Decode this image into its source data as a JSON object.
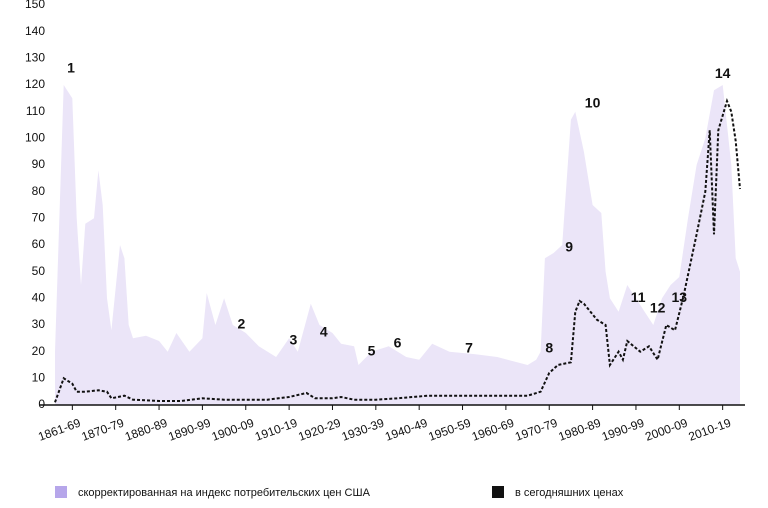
{
  "chart_data": {
    "type": "area-line",
    "series": [
      {
        "name": "скорректированная на индекс потребительских цен США",
        "color": "#ebe5f8",
        "legend_color": "#b6a6ea",
        "style": "area",
        "x": [
          1861,
          1863,
          1865,
          1866,
          1867,
          1868,
          1870,
          1871,
          1872,
          1873,
          1874,
          1876,
          1877,
          1878,
          1879,
          1882,
          1885,
          1887,
          1889,
          1892,
          1895,
          1896,
          1898,
          1900,
          1902,
          1905,
          1908,
          1912,
          1915,
          1917,
          1920,
          1922,
          1925,
          1927,
          1930,
          1931,
          1934,
          1938,
          1942,
          1945,
          1948,
          1952,
          1958,
          1963,
          1970,
          1972,
          1973,
          1974,
          1976,
          1978,
          1980,
          1981,
          1983,
          1985,
          1987,
          1988,
          1989,
          1991,
          1993,
          1995,
          1997,
          1999,
          2001,
          2003,
          2005,
          2007,
          2009,
          2011,
          2013,
          2015,
          2017,
          2018,
          2019
        ],
        "values": [
          20,
          120,
          115,
          70,
          45,
          68,
          70,
          88,
          75,
          40,
          28,
          60,
          55,
          30,
          25,
          26,
          24,
          20,
          27,
          20,
          25,
          42,
          30,
          40,
          30,
          27,
          22,
          18,
          25,
          20,
          38,
          30,
          27,
          23,
          22,
          15,
          20,
          22,
          18,
          17,
          23,
          20,
          19,
          18,
          15,
          17,
          20,
          55,
          57,
          60,
          107,
          110,
          95,
          75,
          72,
          50,
          40,
          35,
          45,
          40,
          35,
          30,
          40,
          45,
          48,
          70,
          90,
          100,
          118,
          120,
          90,
          55,
          50
        ]
      },
      {
        "name": "в сегодняшних ценах",
        "color": "#111111",
        "style": "dashed-line",
        "x": [
          1861,
          1863,
          1865,
          1866,
          1868,
          1871,
          1873,
          1874,
          1877,
          1879,
          1885,
          1890,
          1895,
          1900,
          1910,
          1915,
          1919,
          1921,
          1925,
          1927,
          1930,
          1935,
          1940,
          1947,
          1960,
          1970,
          1973,
          1975,
          1977,
          1980,
          1981,
          1982,
          1983,
          1986,
          1988,
          1989,
          1991,
          1992,
          1993,
          1996,
          1998,
          2000,
          2002,
          2004,
          2006,
          2009,
          2011,
          2012,
          2013,
          2014,
          2016,
          2017,
          2018,
          2019
        ],
        "values": [
          1,
          10,
          8,
          5,
          5,
          5.5,
          5,
          2.5,
          3.5,
          2,
          1.5,
          1.5,
          2.5,
          2,
          2,
          3,
          4.5,
          2.5,
          2.5,
          3,
          2,
          2,
          2.5,
          3.5,
          3.5,
          3.5,
          5,
          12,
          15,
          16,
          35,
          39,
          38,
          32,
          30,
          15,
          20,
          17,
          24,
          20,
          22,
          17,
          30,
          28,
          41,
          64,
          80,
          103,
          64,
          103,
          114,
          110,
          99,
          81
        ]
      }
    ],
    "xlim": [
      1861,
      2019
    ],
    "xticks": [
      {
        "value": 1865,
        "label": "1861-69"
      },
      {
        "value": 1875,
        "label": "1870-79"
      },
      {
        "value": 1885,
        "label": "1880-89"
      },
      {
        "value": 1895,
        "label": "1890-99"
      },
      {
        "value": 1905,
        "label": "1900-09"
      },
      {
        "value": 1915,
        "label": "1910-19"
      },
      {
        "value": 1925,
        "label": "1920-29"
      },
      {
        "value": 1935,
        "label": "1930-39"
      },
      {
        "value": 1945,
        "label": "1940-49"
      },
      {
        "value": 1955,
        "label": "1950-59"
      },
      {
        "value": 1965,
        "label": "1960-69"
      },
      {
        "value": 1975,
        "label": "1970-79"
      },
      {
        "value": 1985,
        "label": "1980-89"
      },
      {
        "value": 1995,
        "label": "1990-99"
      },
      {
        "value": 2005,
        "label": "2000-09"
      },
      {
        "value": 2015,
        "label": "2010-19"
      }
    ],
    "ylim": [
      0,
      150
    ],
    "yticks": [
      0,
      10,
      20,
      30,
      40,
      50,
      60,
      70,
      80,
      90,
      100,
      110,
      120,
      130,
      140,
      150
    ],
    "annotations": [
      {
        "text": "1",
        "x": 1864.7,
        "y": 126
      },
      {
        "text": "2",
        "x": 1904,
        "y": 30
      },
      {
        "text": "3",
        "x": 1916,
        "y": 24
      },
      {
        "text": "4",
        "x": 1923,
        "y": 27
      },
      {
        "text": "5",
        "x": 1934,
        "y": 20
      },
      {
        "text": "6",
        "x": 1940,
        "y": 23
      },
      {
        "text": "7",
        "x": 1956.5,
        "y": 21
      },
      {
        "text": "8",
        "x": 1975,
        "y": 21
      },
      {
        "text": "9",
        "x": 1979.6,
        "y": 59
      },
      {
        "text": "10",
        "x": 1985,
        "y": 113
      },
      {
        "text": "11",
        "x": 1995.5,
        "y": 40
      },
      {
        "text": "12",
        "x": 2000,
        "y": 36
      },
      {
        "text": "13",
        "x": 2005,
        "y": 40
      },
      {
        "text": "14",
        "x": 2015,
        "y": 124
      }
    ]
  }
}
